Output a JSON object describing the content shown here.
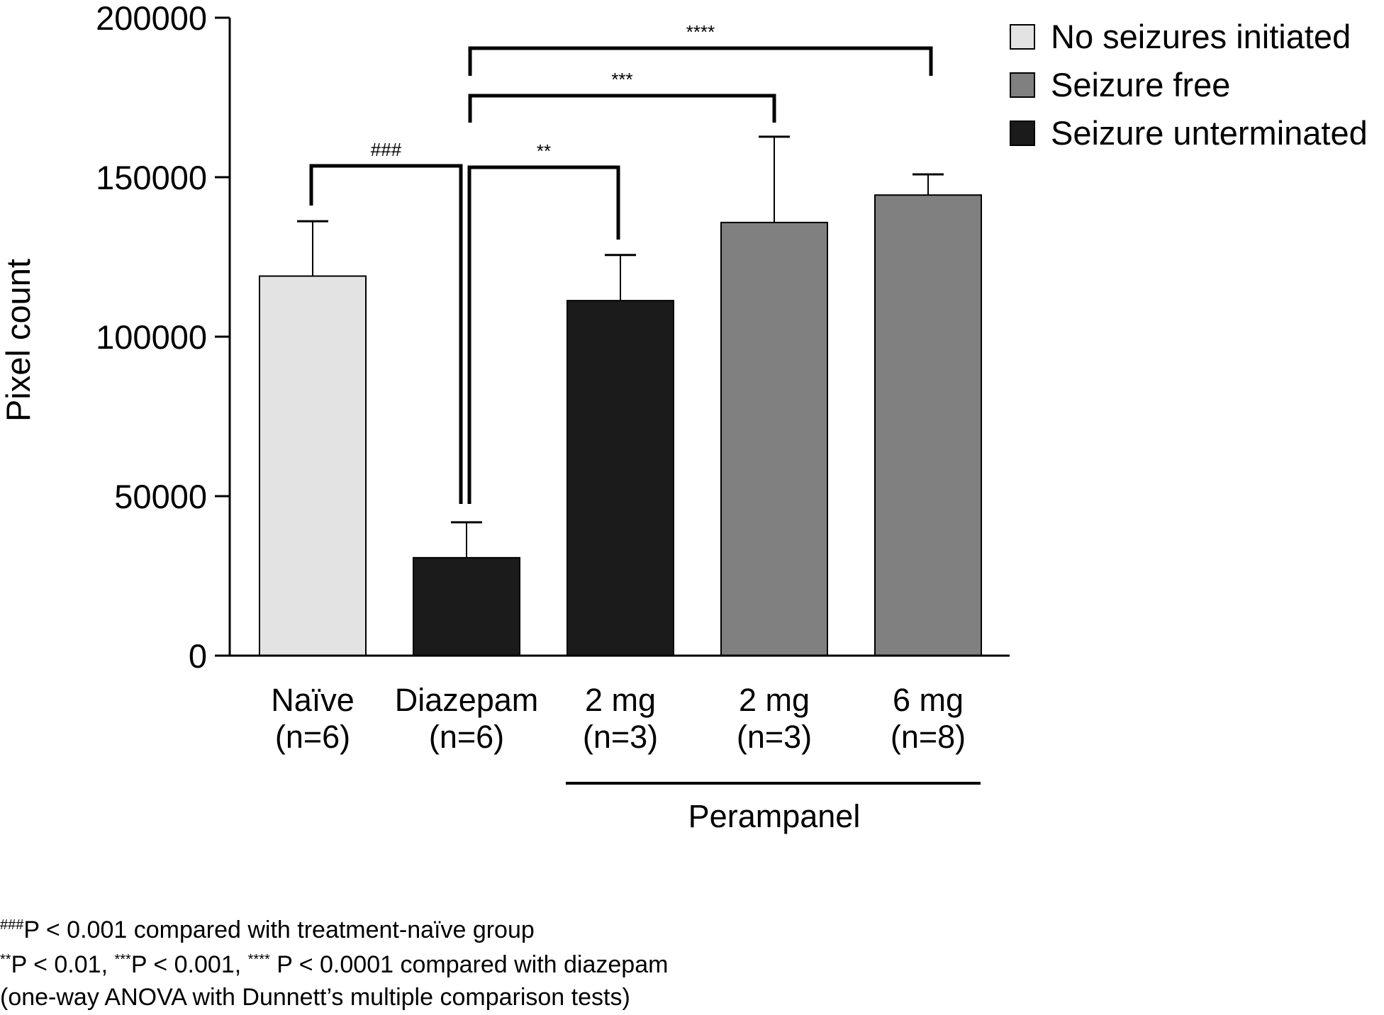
{
  "chart_data": {
    "type": "bar",
    "ylabel": "Pixel count",
    "xlabel": "",
    "ylim": [
      0,
      200000
    ],
    "yticks": [
      0,
      50000,
      100000,
      150000,
      200000
    ],
    "ytick_labels": [
      "0",
      "50000",
      "100000",
      "150000",
      "200000"
    ],
    "categories": [
      {
        "name": "Naïve",
        "n": "(n=6)",
        "group": "No seizures initiated"
      },
      {
        "name": "Diazepam",
        "n": "(n=6)",
        "group": "Seizure unterminated"
      },
      {
        "name": "2 mg",
        "n": "(n=3)",
        "group": "Seizure unterminated"
      },
      {
        "name": "2 mg",
        "n": "(n=3)",
        "group": "Seizure free"
      },
      {
        "name": "6 mg",
        "n": "(n=8)",
        "group": "Seizure free"
      }
    ],
    "values": [
      119000,
      30700,
      111300,
      135800,
      144400
    ],
    "error_upper": [
      136200,
      41800,
      125600,
      162700,
      150900
    ],
    "group_label": {
      "text": "Perampanel",
      "spans_categories": [
        2,
        4
      ]
    },
    "legend": {
      "position": "top-right",
      "entries": [
        {
          "label": "No seizures initiated",
          "color": "#e3e3e3"
        },
        {
          "label": "Seizure free",
          "color": "#808080"
        },
        {
          "label": "Seizure unterminated",
          "color": "#1b1b1b"
        }
      ]
    },
    "significance": [
      {
        "label": "###",
        "from": 0,
        "to": 1
      },
      {
        "label": "**",
        "from": 1,
        "to": 2
      },
      {
        "label": "***",
        "from": 1,
        "to": 3
      },
      {
        "label": "****",
        "from": 1,
        "to": 4
      }
    ],
    "grid": false
  },
  "footnotes": {
    "line1_sup": "###",
    "line1_text": "P < 0.001 compared with treatment-naïve group",
    "line2_sup1": "**",
    "line2_text1": "P < 0.01, ",
    "line2_sup2": "***",
    "line2_text2": "P < 0.001, ",
    "line2_sup3": "****",
    "line2_text3": " P < 0.0001 compared with diazepam",
    "line3_text": "(one-way ANOVA with Dunnett’s multiple comparison tests)"
  }
}
